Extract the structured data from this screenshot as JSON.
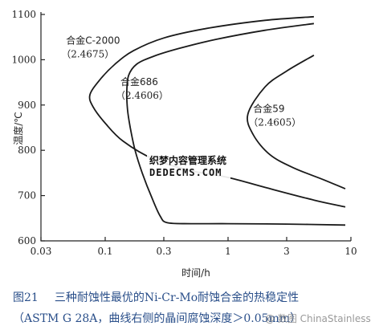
{
  "chart_data": {
    "type": "line",
    "title": "",
    "xlabel": "时间/h",
    "ylabel": "温度/℃",
    "xscale": "log",
    "xlim": [
      0.03,
      10
    ],
    "ylim": [
      600,
      1100
    ],
    "x_ticks": [
      {
        "value": 0.03,
        "label": "0.03"
      },
      {
        "value": 0.1,
        "label": "0.1"
      },
      {
        "value": 0.3,
        "label": "0.3"
      },
      {
        "value": 1,
        "label": "1"
      },
      {
        "value": 3,
        "label": "3"
      },
      {
        "value": 10,
        "label": "10"
      }
    ],
    "y_ticks": [
      {
        "value": 600,
        "label": "600"
      },
      {
        "value": 700,
        "label": "700"
      },
      {
        "value": 800,
        "label": "800"
      },
      {
        "value": 900,
        "label": "900"
      },
      {
        "value": 1000,
        "label": "1000"
      },
      {
        "value": 1100,
        "label": "1100"
      }
    ],
    "grid": false,
    "series": [
      {
        "name": "合金C-2000",
        "note": "（2.4675）",
        "label_t": 0.048,
        "label_T": 1035,
        "points": [
          [
            5.0,
            1095
          ],
          [
            2.0,
            1087
          ],
          [
            0.7,
            1070
          ],
          [
            0.3,
            1048
          ],
          [
            0.17,
            1020
          ],
          [
            0.12,
            990
          ],
          [
            0.09,
            955
          ],
          [
            0.075,
            922
          ],
          [
            0.08,
            895
          ],
          [
            0.1,
            860
          ],
          [
            0.14,
            820
          ],
          [
            0.25,
            780
          ],
          [
            0.5,
            755
          ],
          [
            1.0,
            740
          ],
          [
            2.0,
            718
          ],
          [
            5.0,
            690
          ],
          [
            9.0,
            675
          ]
        ]
      },
      {
        "name": "合金686",
        "note": "（2.4606）",
        "label_t": 0.133,
        "label_T": 944,
        "points": [
          [
            5.0,
            1080
          ],
          [
            2.0,
            1065
          ],
          [
            0.8,
            1045
          ],
          [
            0.4,
            1025
          ],
          [
            0.25,
            1008
          ],
          [
            0.18,
            990
          ],
          [
            0.155,
            965
          ],
          [
            0.15,
            930
          ],
          [
            0.152,
            890
          ],
          [
            0.16,
            850
          ],
          [
            0.175,
            800
          ],
          [
            0.2,
            750
          ],
          [
            0.24,
            695
          ],
          [
            0.28,
            655
          ],
          [
            0.32,
            640
          ],
          [
            0.5,
            638
          ],
          [
            1.0,
            638
          ],
          [
            3.0,
            637
          ],
          [
            9.0,
            635
          ]
        ]
      },
      {
        "name": "合金59",
        "note": "（2.4605）",
        "label_t": 1.6,
        "label_T": 885,
        "points": [
          [
            5.0,
            1010
          ],
          [
            3.0,
            975
          ],
          [
            2.0,
            940
          ],
          [
            1.45,
            880
          ],
          [
            1.6,
            835
          ],
          [
            2.2,
            790
          ],
          [
            3.5,
            760
          ],
          [
            6.0,
            735
          ],
          [
            9.0,
            715
          ]
        ]
      }
    ]
  },
  "watermark": {
    "line1": "织梦内容管理系统",
    "line2": "DEDECMS.COM"
  },
  "caption": {
    "line1_num": "图21",
    "line1_text": "三种耐蚀性最优的Ni-Cr-Mo耐蚀合金的热稳定性",
    "line2_text": "（ASTM G 28A，曲线右侧的晶间腐蚀深度＞0.05mm）"
  },
  "credit": "@ 数图 ChinaStainless"
}
